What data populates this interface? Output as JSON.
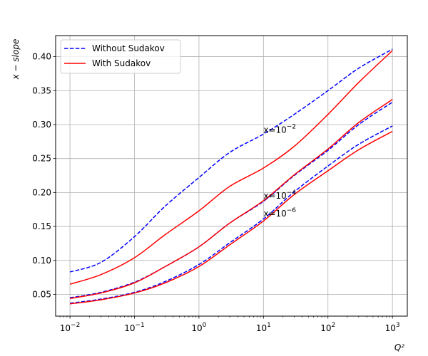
{
  "chart_data": {
    "type": "line",
    "title": "",
    "xlabel": "Q²",
    "ylabel": "x − slope",
    "xscale": "log",
    "xlim": [
      0.006,
      1700
    ],
    "ylim": [
      0.018,
      0.431
    ],
    "xticks": [
      {
        "value": 0.01,
        "base": "10",
        "exp": "−2"
      },
      {
        "value": 0.1,
        "base": "10",
        "exp": "−1"
      },
      {
        "value": 1,
        "base": "10",
        "exp": "0"
      },
      {
        "value": 10,
        "base": "10",
        "exp": "1"
      },
      {
        "value": 100,
        "base": "10",
        "exp": "2"
      },
      {
        "value": 1000,
        "base": "10",
        "exp": "3"
      }
    ],
    "yticks": [
      {
        "value": 0.05,
        "label": "0.05"
      },
      {
        "value": 0.1,
        "label": "0.10"
      },
      {
        "value": 0.15,
        "label": "0.15"
      },
      {
        "value": 0.2,
        "label": "0.20"
      },
      {
        "value": 0.25,
        "label": "0.25"
      },
      {
        "value": 0.3,
        "label": "0.30"
      },
      {
        "value": 0.35,
        "label": "0.35"
      },
      {
        "value": 0.4,
        "label": "0.40"
      }
    ],
    "grid": true,
    "legend": {
      "position": "top-left",
      "entries": [
        {
          "label": "Without Sudakov",
          "color": "#0000ff",
          "dash": "dashed"
        },
        {
          "label": "With Sudakov",
          "color": "#ff0000",
          "dash": "solid"
        }
      ]
    },
    "x": [
      0.01,
      0.03,
      0.1,
      0.3,
      1,
      3,
      10,
      30,
      100,
      300,
      1000
    ],
    "series": [
      {
        "group": "Without Sudakov",
        "curve": "x=10^-2",
        "color": "#0000ff",
        "dash": "dashed",
        "values": [
          0.083,
          0.097,
          0.135,
          0.18,
          0.222,
          0.259,
          0.286,
          0.315,
          0.35,
          0.383,
          0.411
        ]
      },
      {
        "group": "With Sudakov",
        "curve": "x=10^-2",
        "color": "#ff0000",
        "dash": "solid",
        "values": [
          0.065,
          0.079,
          0.104,
          0.138,
          0.173,
          0.209,
          0.236,
          0.268,
          0.315,
          0.362,
          0.409
        ]
      },
      {
        "group": "Without Sudakov",
        "curve": "x=10^-4",
        "color": "#0000ff",
        "dash": "dashed",
        "values": [
          0.045,
          0.053,
          0.068,
          0.091,
          0.12,
          0.155,
          0.187,
          0.225,
          0.262,
          0.3,
          0.333
        ]
      },
      {
        "group": "With Sudakov",
        "curve": "x=10^-4",
        "color": "#ff0000",
        "dash": "solid",
        "values": [
          0.044,
          0.052,
          0.067,
          0.091,
          0.12,
          0.155,
          0.188,
          0.226,
          0.264,
          0.303,
          0.337
        ]
      },
      {
        "group": "Without Sudakov",
        "curve": "x=10^-6",
        "color": "#0000ff",
        "dash": "dashed",
        "values": [
          0.037,
          0.043,
          0.053,
          0.069,
          0.094,
          0.126,
          0.161,
          0.201,
          0.239,
          0.271,
          0.298
        ]
      },
      {
        "group": "With Sudakov",
        "curve": "x=10^-6",
        "color": "#ff0000",
        "dash": "solid",
        "values": [
          0.036,
          0.042,
          0.052,
          0.067,
          0.091,
          0.123,
          0.158,
          0.197,
          0.232,
          0.263,
          0.29
        ]
      }
    ],
    "annotations": [
      {
        "base": "x=10",
        "exp": "−2",
        "x": 10,
        "y": 0.288
      },
      {
        "base": "x=10",
        "exp": "−4",
        "x": 10,
        "y": 0.191
      },
      {
        "base": "x=10",
        "exp": "−6",
        "x": 10,
        "y": 0.165
      }
    ]
  }
}
